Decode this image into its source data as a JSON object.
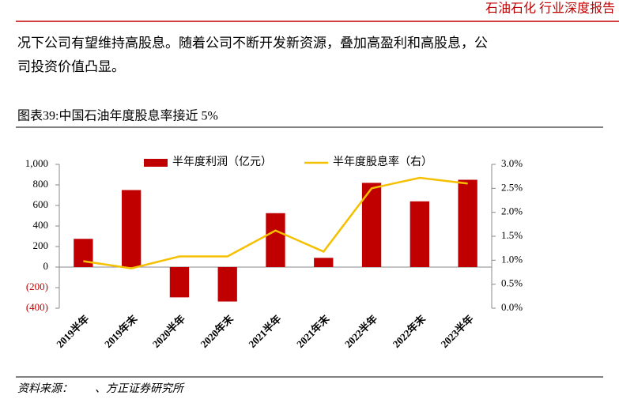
{
  "header": {
    "title": "石油石化 行业深度报告"
  },
  "paragraph": [
    "况下公司有望维持高股息。随着公司不断开发新资源，叠加高盈利和高股息，公",
    "司投资价值凸显。"
  ],
  "caption": "图表39:中国石油年度股息率接近 5%",
  "source": "资料来源：　　、方正证券研究所",
  "chart_data": {
    "type": "bar-line",
    "categories": [
      "2019半年",
      "2019年末",
      "2020半年",
      "2020年末",
      "2021半年",
      "2021年末",
      "2022半年",
      "2022年末",
      "2023半年"
    ],
    "series": [
      {
        "name": "半年度利润（亿元）",
        "color": "#c00000",
        "type": "bar",
        "values": [
          275,
          750,
          -295,
          -335,
          525,
          90,
          820,
          640,
          850
        ]
      },
      {
        "name": "半年度股息率（右）",
        "color": "#f5c000",
        "type": "line",
        "axis": "y2",
        "values": [
          0.98,
          0.83,
          1.08,
          1.08,
          1.62,
          1.18,
          2.5,
          2.72,
          2.6
        ]
      }
    ],
    "ylim": [
      -400,
      1000
    ],
    "yticks": [
      {
        "value": 1000,
        "label": "1,000"
      },
      800,
      600,
      400,
      200,
      0,
      {
        "value": -200,
        "label": "(200)"
      },
      {
        "value": -400,
        "label": "(400)"
      }
    ],
    "y2lim": [
      0,
      3
    ],
    "y2ticks": [
      {
        "value": 3,
        "label": "3.0%"
      },
      {
        "value": 2.5,
        "label": "2.5%"
      },
      {
        "value": 2,
        "label": "2.0%"
      },
      {
        "value": 1.5,
        "label": "1.5%"
      },
      {
        "value": 1,
        "label": "1.0%"
      },
      {
        "value": 0.5,
        "label": "0.5%"
      },
      {
        "value": 0,
        "label": "0.0%"
      }
    ],
    "grid": false
  }
}
